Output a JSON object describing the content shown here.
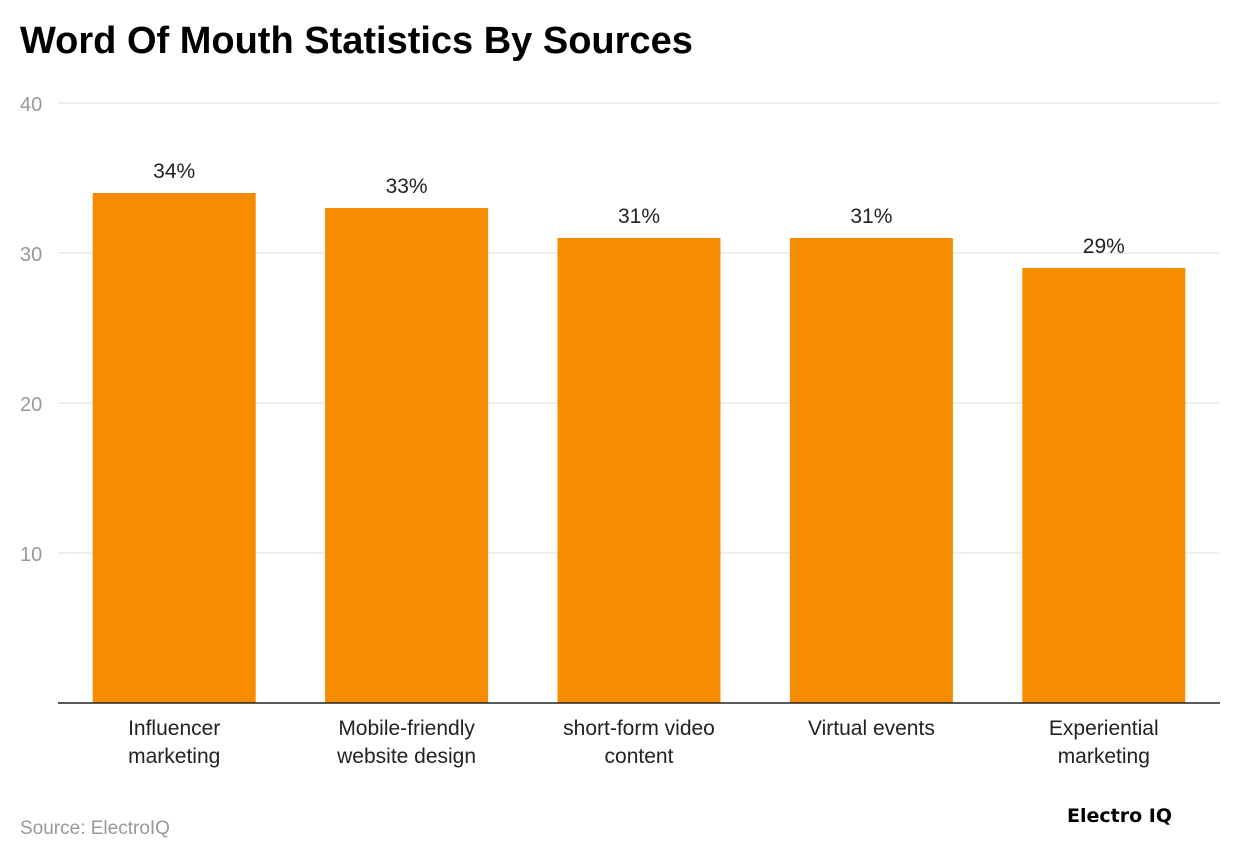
{
  "chart_data": {
    "type": "bar",
    "title": "Word Of Mouth Statistics By Sources",
    "categories": [
      [
        "Influencer",
        "marketing"
      ],
      [
        "Mobile-friendly",
        "website design"
      ],
      [
        "short-form video",
        "content"
      ],
      [
        "Virtual events"
      ],
      [
        "Experiential",
        "marketing"
      ]
    ],
    "values": [
      34,
      33,
      31,
      31,
      29
    ],
    "data_labels": [
      "34%",
      "33%",
      "31%",
      "31%",
      "29%"
    ],
    "yticks": [
      10,
      20,
      30,
      40
    ],
    "ylim": [
      0,
      40
    ],
    "grid": true,
    "bar_color": "#F78C00",
    "xlabel": "",
    "ylabel": ""
  },
  "source": "Source: ElectroIQ",
  "logo": "Electro IQ"
}
